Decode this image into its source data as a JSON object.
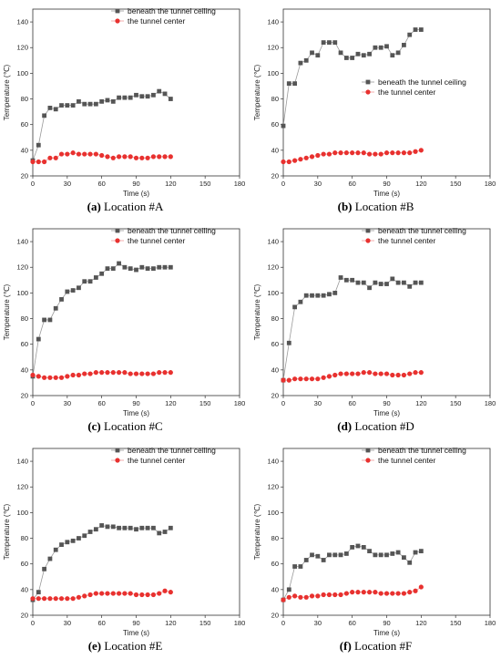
{
  "chart_data": [
    {
      "type": "line",
      "caption_letter": "(a)",
      "caption_text": "Location #A",
      "xlabel": "Time (s)",
      "ylabel": "Temperature (℃)",
      "xlim": [
        0,
        180
      ],
      "ylim": [
        20,
        150
      ],
      "xticks": [
        0,
        30,
        60,
        90,
        120,
        150,
        180
      ],
      "yticks": [
        20,
        40,
        60,
        80,
        100,
        120,
        140
      ],
      "legend_position": "top-right",
      "series": [
        {
          "name": "beneath the tunnel ceiling",
          "color": "#555555",
          "marker": "square",
          "x": [
            0,
            5,
            10,
            15,
            20,
            25,
            30,
            35,
            40,
            45,
            50,
            55,
            60,
            65,
            70,
            75,
            80,
            85,
            90,
            95,
            100,
            105,
            110,
            115,
            120
          ],
          "y": [
            32,
            44,
            67,
            73,
            72,
            75,
            75,
            75,
            78,
            76,
            76,
            76,
            78,
            79,
            78,
            81,
            81,
            81,
            83,
            82,
            82,
            83,
            86,
            84,
            80
          ]
        },
        {
          "name": "the tunnel center",
          "color": "#e8312f",
          "marker": "circle",
          "x": [
            0,
            5,
            10,
            15,
            20,
            25,
            30,
            35,
            40,
            45,
            50,
            55,
            60,
            65,
            70,
            75,
            80,
            85,
            90,
            95,
            100,
            105,
            110,
            115,
            120
          ],
          "y": [
            31,
            31,
            31,
            34,
            34,
            37,
            37,
            38,
            37,
            37,
            37,
            37,
            36,
            35,
            34,
            35,
            35,
            35,
            34,
            34,
            34,
            35,
            35,
            35,
            35
          ]
        }
      ]
    },
    {
      "type": "line",
      "caption_letter": "(b)",
      "caption_text": "Location #B",
      "xlabel": "Time (s)",
      "ylabel": "Temperature (℃)",
      "xlim": [
        0,
        180
      ],
      "ylim": [
        20,
        150
      ],
      "xticks": [
        0,
        30,
        60,
        90,
        120,
        150,
        180
      ],
      "yticks": [
        20,
        40,
        60,
        80,
        100,
        120,
        140
      ],
      "legend_position": "right",
      "series": [
        {
          "name": "beneath the tunnel ceiling",
          "color": "#555555",
          "marker": "square",
          "x": [
            0,
            5,
            10,
            15,
            20,
            25,
            30,
            35,
            40,
            45,
            50,
            55,
            60,
            65,
            70,
            75,
            80,
            85,
            90,
            95,
            100,
            105,
            110,
            115,
            120
          ],
          "y": [
            59,
            92,
            92,
            108,
            110,
            116,
            114,
            124,
            124,
            124,
            116,
            112,
            112,
            115,
            114,
            115,
            120,
            120,
            121,
            114,
            116,
            122,
            130,
            134,
            134
          ]
        },
        {
          "name": "the tunnel center",
          "color": "#e8312f",
          "marker": "circle",
          "x": [
            0,
            5,
            10,
            15,
            20,
            25,
            30,
            35,
            40,
            45,
            50,
            55,
            60,
            65,
            70,
            75,
            80,
            85,
            90,
            95,
            100,
            105,
            110,
            115,
            120
          ],
          "y": [
            31,
            31,
            32,
            33,
            34,
            35,
            36,
            37,
            37,
            38,
            38,
            38,
            38,
            38,
            38,
            37,
            37,
            37,
            38,
            38,
            38,
            38,
            38,
            39,
            40
          ]
        }
      ]
    },
    {
      "type": "line",
      "caption_letter": "(c)",
      "caption_text": "Location #C",
      "xlabel": "Time (s)",
      "ylabel": "Temperature (℃)",
      "xlim": [
        0,
        180
      ],
      "ylim": [
        20,
        150
      ],
      "xticks": [
        0,
        30,
        60,
        90,
        120,
        150,
        180
      ],
      "yticks": [
        20,
        40,
        60,
        80,
        100,
        120,
        140
      ],
      "legend_position": "top-right",
      "series": [
        {
          "name": "beneath the tunnel ceiling",
          "color": "#555555",
          "marker": "square",
          "x": [
            0,
            5,
            10,
            15,
            20,
            25,
            30,
            35,
            40,
            45,
            50,
            55,
            60,
            65,
            70,
            75,
            80,
            85,
            90,
            95,
            100,
            105,
            110,
            115,
            120
          ],
          "y": [
            35,
            64,
            79,
            79,
            88,
            95,
            101,
            102,
            104,
            109,
            109,
            112,
            115,
            119,
            119,
            123,
            120,
            119,
            118,
            120,
            119,
            119,
            120,
            120,
            120
          ]
        },
        {
          "name": "the tunnel center",
          "color": "#e8312f",
          "marker": "circle",
          "x": [
            0,
            5,
            10,
            15,
            20,
            25,
            30,
            35,
            40,
            45,
            50,
            55,
            60,
            65,
            70,
            75,
            80,
            85,
            90,
            95,
            100,
            105,
            110,
            115,
            120
          ],
          "y": [
            36,
            35,
            34,
            34,
            34,
            34,
            35,
            36,
            36,
            37,
            37,
            38,
            38,
            38,
            38,
            38,
            38,
            37,
            37,
            37,
            37,
            37,
            38,
            38,
            38
          ]
        }
      ]
    },
    {
      "type": "line",
      "caption_letter": "(d)",
      "caption_text": "Location #D",
      "xlabel": "Time (s)",
      "ylabel": "Temperature (℃)",
      "xlim": [
        0,
        180
      ],
      "ylim": [
        20,
        150
      ],
      "xticks": [
        0,
        30,
        60,
        90,
        120,
        150,
        180
      ],
      "yticks": [
        20,
        40,
        60,
        80,
        100,
        120,
        140
      ],
      "legend_position": "top-right",
      "series": [
        {
          "name": "beneath the tunnel ceiling",
          "color": "#555555",
          "marker": "square",
          "x": [
            0,
            5,
            10,
            15,
            20,
            25,
            30,
            35,
            40,
            45,
            50,
            55,
            60,
            65,
            70,
            75,
            80,
            85,
            90,
            95,
            100,
            105,
            110,
            115,
            120
          ],
          "y": [
            32,
            61,
            89,
            93,
            98,
            98,
            98,
            98,
            99,
            100,
            112,
            110,
            110,
            108,
            108,
            104,
            108,
            107,
            107,
            111,
            108,
            108,
            105,
            108,
            108
          ]
        },
        {
          "name": "the tunnel center",
          "color": "#e8312f",
          "marker": "circle",
          "x": [
            0,
            5,
            10,
            15,
            20,
            25,
            30,
            35,
            40,
            45,
            50,
            55,
            60,
            65,
            70,
            75,
            80,
            85,
            90,
            95,
            100,
            105,
            110,
            115,
            120
          ],
          "y": [
            32,
            32,
            33,
            33,
            33,
            33,
            33,
            34,
            35,
            36,
            37,
            37,
            37,
            37,
            38,
            38,
            37,
            37,
            37,
            36,
            36,
            36,
            37,
            38,
            38
          ]
        }
      ]
    },
    {
      "type": "line",
      "caption_letter": "(e)",
      "caption_text": "Location #E",
      "xlabel": "Time (s)",
      "ylabel": "Temperature (℃)",
      "xlim": [
        0,
        180
      ],
      "ylim": [
        20,
        150
      ],
      "xticks": [
        0,
        30,
        60,
        90,
        120,
        150,
        180
      ],
      "yticks": [
        20,
        40,
        60,
        80,
        100,
        120,
        140
      ],
      "legend_position": "top-right",
      "series": [
        {
          "name": "beneath the tunnel ceiling",
          "color": "#555555",
          "marker": "square",
          "x": [
            0,
            5,
            10,
            15,
            20,
            25,
            30,
            35,
            40,
            45,
            50,
            55,
            60,
            65,
            70,
            75,
            80,
            85,
            90,
            95,
            100,
            105,
            110,
            115,
            120
          ],
          "y": [
            32,
            38,
            56,
            64,
            71,
            75,
            77,
            78,
            80,
            82,
            85,
            87,
            90,
            89,
            89,
            88,
            88,
            88,
            87,
            88,
            88,
            88,
            84,
            85,
            88
          ]
        },
        {
          "name": "the tunnel center",
          "color": "#e8312f",
          "marker": "circle",
          "x": [
            0,
            5,
            10,
            15,
            20,
            25,
            30,
            35,
            40,
            45,
            50,
            55,
            60,
            65,
            70,
            75,
            80,
            85,
            90,
            95,
            100,
            105,
            110,
            115,
            120
          ],
          "y": [
            33,
            33,
            33,
            33,
            33,
            33,
            33,
            33,
            34,
            35,
            36,
            37,
            37,
            37,
            37,
            37,
            37,
            37,
            36,
            36,
            36,
            36,
            37,
            39,
            38
          ]
        }
      ]
    },
    {
      "type": "line",
      "caption_letter": "(f)",
      "caption_text": "Location #F",
      "xlabel": "Time (s)",
      "ylabel": "Temperature (℃)",
      "xlim": [
        0,
        180
      ],
      "ylim": [
        20,
        150
      ],
      "xticks": [
        0,
        30,
        60,
        90,
        120,
        150,
        180
      ],
      "yticks": [
        20,
        40,
        60,
        80,
        100,
        120,
        140
      ],
      "legend_position": "top-right",
      "series": [
        {
          "name": "beneath the tunnel ceiling",
          "color": "#555555",
          "marker": "square",
          "x": [
            0,
            5,
            10,
            15,
            20,
            25,
            30,
            35,
            40,
            45,
            50,
            55,
            60,
            65,
            70,
            75,
            80,
            85,
            90,
            95,
            100,
            105,
            110,
            115,
            120
          ],
          "y": [
            32,
            40,
            58,
            58,
            63,
            67,
            66,
            63,
            67,
            67,
            67,
            68,
            73,
            74,
            73,
            70,
            67,
            67,
            67,
            68,
            69,
            65,
            61,
            69,
            70
          ]
        },
        {
          "name": "the tunnel center",
          "color": "#e8312f",
          "marker": "circle",
          "x": [
            0,
            5,
            10,
            15,
            20,
            25,
            30,
            35,
            40,
            45,
            50,
            55,
            60,
            65,
            70,
            75,
            80,
            85,
            90,
            95,
            100,
            105,
            110,
            115,
            120
          ],
          "y": [
            32,
            34,
            35,
            34,
            34,
            35,
            35,
            36,
            36,
            36,
            36,
            37,
            38,
            38,
            38,
            38,
            38,
            37,
            37,
            37,
            37,
            37,
            38,
            39,
            42
          ]
        }
      ]
    }
  ]
}
